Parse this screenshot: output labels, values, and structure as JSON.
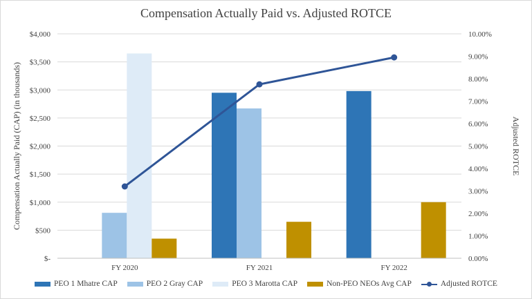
{
  "chart_data": {
    "type": "bar",
    "title": "Compensation Actually Paid vs. Adjusted ROTCE",
    "ylabel": "Compensation Actually Paid (CAP) (in thousands)",
    "y2label": "Adjusted ROTCE",
    "categories": [
      "FY 2020",
      "FY 2021",
      "FY 2022"
    ],
    "ylim": [
      0,
      4000
    ],
    "y2lim": [
      0,
      10
    ],
    "yticks": [
      "$-",
      "$500",
      "$1,000",
      "$1,500",
      "$2,000",
      "$2,500",
      "$3,000",
      "$3,500",
      "$4,000"
    ],
    "y2ticks": [
      "0.00%",
      "1.00%",
      "2.00%",
      "3.00%",
      "4.00%",
      "5.00%",
      "6.00%",
      "7.00%",
      "8.00%",
      "9.00%",
      "10.00%"
    ],
    "grid": true,
    "legend_position": "bottom",
    "series": [
      {
        "name": "PEO 1 Mhatre CAP",
        "kind": "bar",
        "color": "#2e75b6",
        "values": [
          null,
          2950,
          2980
        ]
      },
      {
        "name": "PEO 2 Gray CAP",
        "kind": "bar",
        "color": "#9dc3e6",
        "values": [
          810,
          2670,
          null
        ]
      },
      {
        "name": "PEO 3 Marotta CAP",
        "kind": "bar",
        "color": "#deebf7",
        "values": [
          3650,
          null,
          null
        ]
      },
      {
        "name": "Non-PEO NEOs Avg CAP",
        "kind": "bar",
        "color": "#bf9000",
        "values": [
          350,
          650,
          1000
        ]
      },
      {
        "name": "Adjusted ROTCE",
        "kind": "line",
        "axis": "right",
        "color": "#2f5597",
        "values": [
          3.2,
          7.75,
          8.95
        ]
      }
    ]
  }
}
